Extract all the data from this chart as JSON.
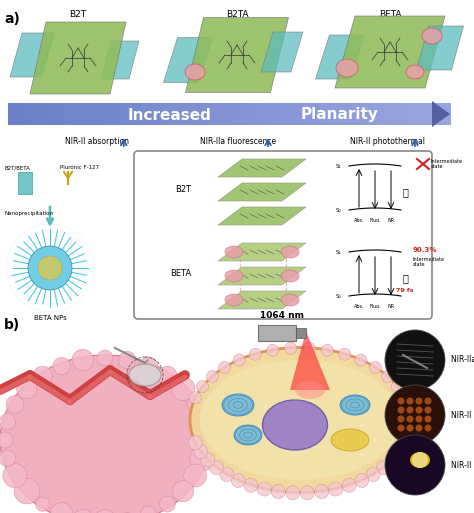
{
  "fig_width": 4.74,
  "fig_height": 5.13,
  "dpi": 100,
  "bg_color": "#ffffff",
  "green": "#8fbc5a",
  "green_light": "#b8d88a",
  "green_dark": "#6a9a3a",
  "pink": "#e8a0a8",
  "teal": "#5bbcbe",
  "blue_arrow": "#8090c8",
  "blue_light": "#b0bcdc",
  "red": "#cc2222",
  "orange": "#e07828",
  "panel_a_titles": [
    "B2T",
    "B2TA",
    "BETA"
  ],
  "nir_labels": [
    "NIR-II absorption",
    "NIR-IIa fluorescence",
    "NIR-II photothermal"
  ],
  "nm_label": "1064 nm",
  "fli_label": "NIR-IIa FLI",
  "pai_label": "NIR-II PAI",
  "ptt_label": "NIR-II PTT"
}
